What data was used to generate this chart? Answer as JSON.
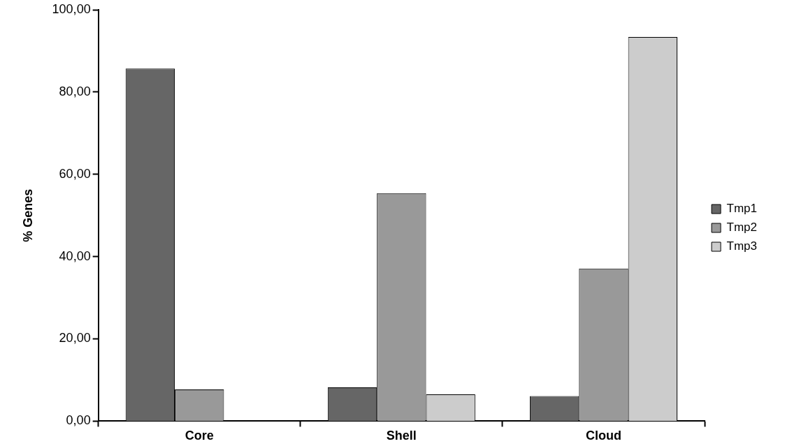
{
  "chart_data": {
    "type": "bar",
    "ylabel": "% Genes",
    "categories": [
      "Core",
      "Shell",
      "Cloud"
    ],
    "series": [
      {
        "name": "Tmp1",
        "color": "#666666",
        "values": [
          85.7,
          8.2,
          6.1
        ]
      },
      {
        "name": "Tmp2",
        "color": "#999999",
        "values": [
          7.7,
          55.4,
          37.1
        ]
      },
      {
        "name": "Tmp3",
        "color": "#cccccc",
        "values": [
          0,
          6.5,
          93.4
        ]
      }
    ],
    "ylim": [
      0,
      100
    ],
    "yticks": [
      {
        "value": 0,
        "label": "0,00"
      },
      {
        "value": 20,
        "label": "20,00"
      },
      {
        "value": 40,
        "label": "40,00"
      },
      {
        "value": 60,
        "label": "60,00"
      },
      {
        "value": 80,
        "label": "80,00"
      },
      {
        "value": 100,
        "label": "100,00"
      }
    ],
    "grid": false,
    "legend": "right"
  }
}
